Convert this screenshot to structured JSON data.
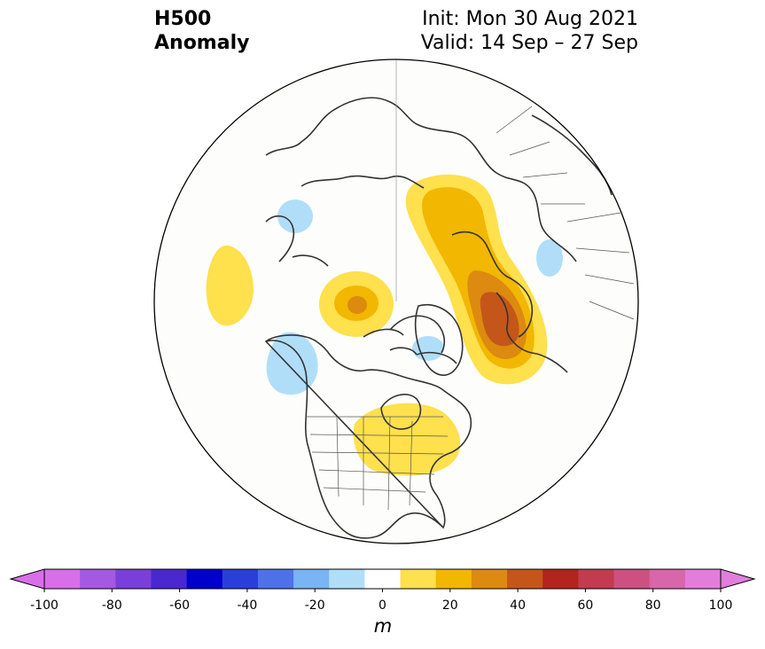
{
  "title": {
    "line1": "H500",
    "line2": "Anomaly"
  },
  "subtitle": {
    "init": "Init: Mon 30 Aug 2021",
    "valid": "Valid: 14 Sep – 27 Sep"
  },
  "colorbar": {
    "unit": "m",
    "ticks": [
      "-100",
      "-80",
      "-60",
      "-40",
      "-20",
      "0",
      "20",
      "40",
      "60",
      "80",
      "100"
    ],
    "levels": [
      -100,
      -90,
      -80,
      -70,
      -60,
      -50,
      -40,
      -30,
      -20,
      -10,
      10,
      20,
      30,
      40,
      50,
      60,
      70,
      80,
      90,
      100
    ],
    "colors": [
      "#d86fe8",
      "#a559e0",
      "#7a3fd8",
      "#4a28d0",
      "#0000cc",
      "#2a3fd9",
      "#4f71e8",
      "#79b4f5",
      "#b0def9",
      "#ffffff",
      "#ffe04d",
      "#f2b700",
      "#dd8a10",
      "#c4561a",
      "#b2241d",
      "#c23b4e",
      "#cc5180",
      "#d766aa",
      "#e37ddc"
    ]
  },
  "map_features": [
    "north-america",
    "greenland",
    "europe",
    "asia",
    "arctic-ocean",
    "polar-stereographic-projection"
  ]
}
